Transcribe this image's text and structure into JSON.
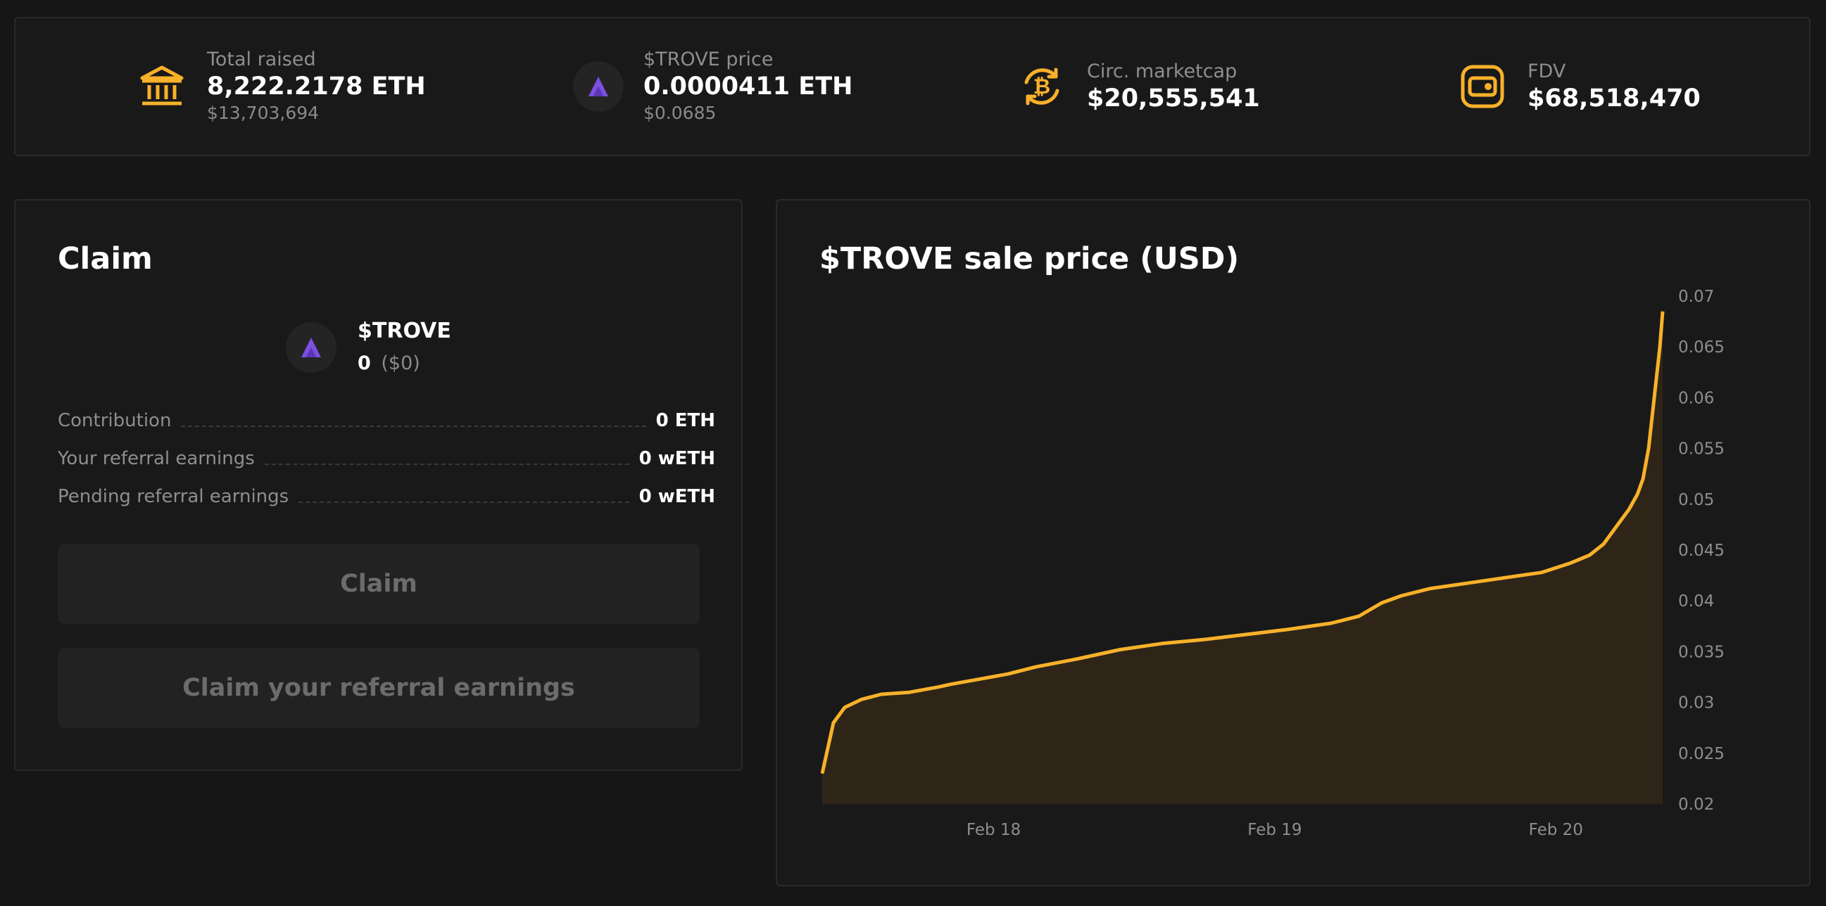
{
  "stats": [
    {
      "icon": "bank-icon",
      "label": "Total raised",
      "value": "8,222.2178 ETH",
      "sub": "$13,703,694"
    },
    {
      "icon": "trove-logo-icon",
      "label": "$TROVE price",
      "value": "0.0000411 ETH",
      "sub": "$0.0685"
    },
    {
      "icon": "bitcoin-cycle-icon",
      "label": "Circ. marketcap",
      "value": "$20,555,541",
      "sub": ""
    },
    {
      "icon": "wallet-icon",
      "label": "FDV",
      "value": "$68,518,470",
      "sub": ""
    }
  ],
  "claim": {
    "title": "Claim",
    "token_name": "$TROVE",
    "token_amount": "0",
    "token_usd": "($0)",
    "rows": [
      {
        "label": "Contribution",
        "value": "0 ETH"
      },
      {
        "label": "Your referral earnings",
        "value": "0 wETH"
      },
      {
        "label": "Pending referral earnings",
        "value": "0 wETH"
      }
    ],
    "claim_button": "Claim",
    "referral_button": "Claim your referral earnings"
  },
  "chart": {
    "title": "$TROVE sale price (USD)"
  },
  "colors": {
    "accent": "#f8b12a",
    "trove_purple": "#7b4fe0",
    "fill": "#2e2518"
  },
  "chart_data": {
    "type": "area",
    "title": "$TROVE sale price (USD)",
    "xlabel": "",
    "ylabel": "",
    "x_ticks": [
      "Feb 18",
      "Feb 19",
      "Feb 20"
    ],
    "x_tick_positions": [
      1.0,
      2.0,
      3.0
    ],
    "xlim": [
      0.39,
      3.38
    ],
    "ylim": [
      0.02,
      0.07
    ],
    "y_ticks": [
      "0.07",
      "0.065",
      "0.06",
      "0.055",
      "0.05",
      "0.045",
      "0.04",
      "0.035",
      "0.03",
      "0.025",
      "0.02"
    ],
    "y_tick_values": [
      0.07,
      0.065,
      0.06,
      0.055,
      0.05,
      0.045,
      0.04,
      0.035,
      0.03,
      0.025,
      0.02
    ],
    "grid": false,
    "series": [
      {
        "x": [
          0.39,
          0.43,
          0.47,
          0.53,
          0.6,
          0.7,
          0.8,
          0.85,
          0.95,
          1.05,
          1.15,
          1.3,
          1.45,
          1.6,
          1.75,
          1.9,
          2.05,
          2.2,
          2.3,
          2.38,
          2.45,
          2.55,
          2.7,
          2.85,
          2.95,
          3.05,
          3.12,
          3.17,
          3.22,
          3.26,
          3.29,
          3.31,
          3.33,
          3.35,
          3.37,
          3.38
        ],
        "y": [
          0.023,
          0.028,
          0.0295,
          0.0303,
          0.0308,
          0.031,
          0.0315,
          0.0318,
          0.0323,
          0.0328,
          0.0335,
          0.0343,
          0.0352,
          0.0358,
          0.0362,
          0.0367,
          0.0372,
          0.0378,
          0.0385,
          0.0398,
          0.0405,
          0.0412,
          0.0418,
          0.0424,
          0.0428,
          0.0437,
          0.0445,
          0.0456,
          0.0475,
          0.049,
          0.0505,
          0.052,
          0.055,
          0.06,
          0.065,
          0.0685
        ]
      }
    ]
  }
}
